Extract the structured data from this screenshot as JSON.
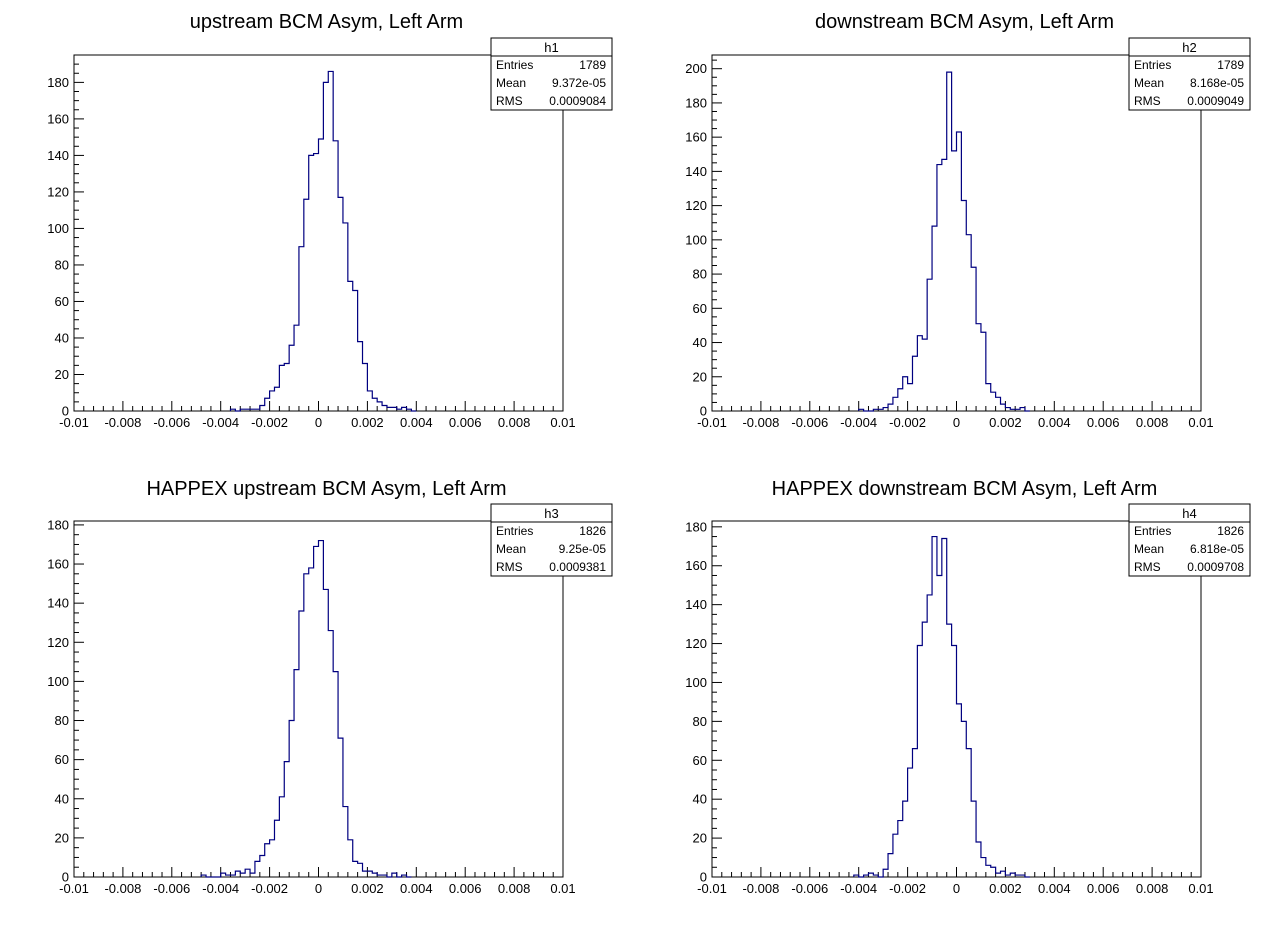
{
  "colors": {
    "hist_line": "#000080",
    "axis": "#000000",
    "background": "#ffffff"
  },
  "chart_data": [
    {
      "type": "histogram",
      "id": "h1",
      "title": "upstream BCM Asym, Left Arm",
      "xlim": [
        -0.01,
        0.01
      ],
      "ylim": [
        0,
        195
      ],
      "x_ticks": [
        "-0.01",
        "-0.008",
        "-0.006",
        "-0.004",
        "-0.002",
        "0",
        "0.002",
        "0.004",
        "0.006",
        "0.008",
        "0.01"
      ],
      "y_ticks": [
        "0",
        "20",
        "40",
        "60",
        "80",
        "100",
        "120",
        "140",
        "160",
        "180"
      ],
      "stats": {
        "name": "h1",
        "rows": [
          [
            "Entries",
            "1789"
          ],
          [
            "Mean",
            "9.372e-05"
          ],
          [
            "RMS",
            "0.0009084"
          ]
        ]
      },
      "bin_start": -0.0036,
      "bin_width": 0.0002,
      "counts": [
        1,
        0,
        1,
        1,
        1,
        1,
        3,
        7,
        11,
        13,
        25,
        26,
        36,
        47,
        90,
        116,
        140,
        141,
        149,
        180,
        186,
        148,
        117,
        103,
        71,
        66,
        38,
        26,
        11,
        7,
        5,
        3,
        2,
        2,
        1,
        2,
        1,
        0
      ]
    },
    {
      "type": "histogram",
      "id": "h2",
      "title": "downstream BCM Asym, Left Arm",
      "xlim": [
        -0.01,
        0.01
      ],
      "ylim": [
        0,
        208
      ],
      "x_ticks": [
        "-0.01",
        "-0.008",
        "-0.006",
        "-0.004",
        "-0.002",
        "0",
        "0.002",
        "0.004",
        "0.006",
        "0.008",
        "0.01"
      ],
      "y_ticks": [
        "0",
        "20",
        "40",
        "60",
        "80",
        "100",
        "120",
        "140",
        "160",
        "180",
        "200"
      ],
      "stats": {
        "name": "h2",
        "rows": [
          [
            "Entries",
            "1789"
          ],
          [
            "Mean",
            "8.168e-05"
          ],
          [
            "RMS",
            "0.0009049"
          ]
        ]
      },
      "bin_start": -0.004,
      "bin_width": 0.0002,
      "counts": [
        1,
        0,
        0,
        1,
        1,
        2,
        4,
        8,
        13,
        20,
        16,
        32,
        44,
        42,
        77,
        108,
        144,
        147,
        198,
        152,
        163,
        123,
        103,
        84,
        51,
        46,
        16,
        11,
        8,
        4,
        2,
        1,
        1,
        2,
        0
      ]
    },
    {
      "type": "histogram",
      "id": "h3",
      "title": "HAPPEX upstream BCM Asym, Left Arm",
      "xlim": [
        -0.01,
        0.01
      ],
      "ylim": [
        0,
        182
      ],
      "x_ticks": [
        "-0.01",
        "-0.008",
        "-0.006",
        "-0.004",
        "-0.002",
        "0",
        "0.002",
        "0.004",
        "0.006",
        "0.008",
        "0.01"
      ],
      "y_ticks": [
        "0",
        "20",
        "40",
        "60",
        "80",
        "100",
        "120",
        "140",
        "160",
        "180"
      ],
      "stats": {
        "name": "h3",
        "rows": [
          [
            "Entries",
            "1826"
          ],
          [
            "Mean",
            "9.25e-05"
          ],
          [
            "RMS",
            "0.0009381"
          ]
        ]
      },
      "bin_start": -0.0048,
      "bin_width": 0.0002,
      "counts": [
        1,
        0,
        0,
        0,
        2,
        1,
        1,
        3,
        2,
        4,
        2,
        8,
        11,
        17,
        19,
        29,
        41,
        59,
        80,
        106,
        136,
        155,
        158,
        169,
        172,
        147,
        126,
        105,
        71,
        36,
        19,
        8,
        7,
        3,
        3,
        2,
        1,
        1,
        0,
        2,
        0,
        1,
        0
      ]
    },
    {
      "type": "histogram",
      "id": "h4",
      "title": "HAPPEX downstream BCM Asym, Left Arm",
      "xlim": [
        -0.01,
        0.01
      ],
      "ylim": [
        0,
        183
      ],
      "x_ticks": [
        "-0.01",
        "-0.008",
        "-0.006",
        "-0.004",
        "-0.002",
        "0",
        "0.002",
        "0.004",
        "0.006",
        "0.008",
        "0.01"
      ],
      "y_ticks": [
        "0",
        "20",
        "40",
        "60",
        "80",
        "100",
        "120",
        "140",
        "160",
        "180"
      ],
      "stats": {
        "name": "h4",
        "rows": [
          [
            "Entries",
            "1826"
          ],
          [
            "Mean",
            "6.818e-05"
          ],
          [
            "RMS",
            "0.0009708"
          ]
        ]
      },
      "bin_start": -0.0042,
      "bin_width": 0.0002,
      "counts": [
        1,
        0,
        1,
        2,
        1,
        0,
        4,
        12,
        22,
        29,
        39,
        56,
        66,
        119,
        131,
        145,
        175,
        155,
        174,
        130,
        119,
        89,
        80,
        66,
        39,
        18,
        10,
        6,
        5,
        2,
        3,
        1,
        2,
        1,
        1,
        0
      ]
    }
  ]
}
